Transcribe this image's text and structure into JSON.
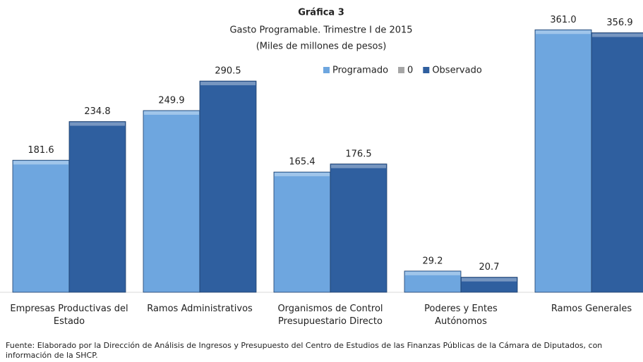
{
  "chart_data": {
    "type": "bar",
    "title": "Gráfica 3",
    "subtitle": "Gasto Programable.  Trimestre I de 2015",
    "unit_label": "(Miles de millones de pesos)",
    "categories": [
      "Empresas Productivas del\nEstado",
      "Ramos Administrativos",
      "Organismos de Control\nPresupuestario Directo",
      "Poderes y Entes\nAutónomos",
      "Ramos Generales"
    ],
    "series": [
      {
        "name": "Programado",
        "color": "#6ea6df",
        "values": [
          181.6,
          249.9,
          165.4,
          29.2,
          361.0
        ],
        "value_labels": [
          "181.6",
          "249.9",
          "165.4",
          "29.2",
          "361.0"
        ]
      },
      {
        "name": "0",
        "color": "#a6a6a6",
        "values": [
          null,
          null,
          null,
          null,
          null
        ]
      },
      {
        "name": "Observado",
        "color": "#2f5f9f",
        "values": [
          234.8,
          290.5,
          176.5,
          20.7,
          356.9
        ],
        "value_labels": [
          "234.8",
          "290.5",
          "176.5",
          "20.7",
          "356.9"
        ]
      }
    ],
    "ylim": [
      0,
      400
    ],
    "legend": "top-right",
    "source": "Fuente: Elaborado por la Dirección de Análisis de Ingresos y Presupuesto del Centro de Estudios de las Finanzas Públicas de la Cámara de Diputados, con información de la SHCP."
  }
}
